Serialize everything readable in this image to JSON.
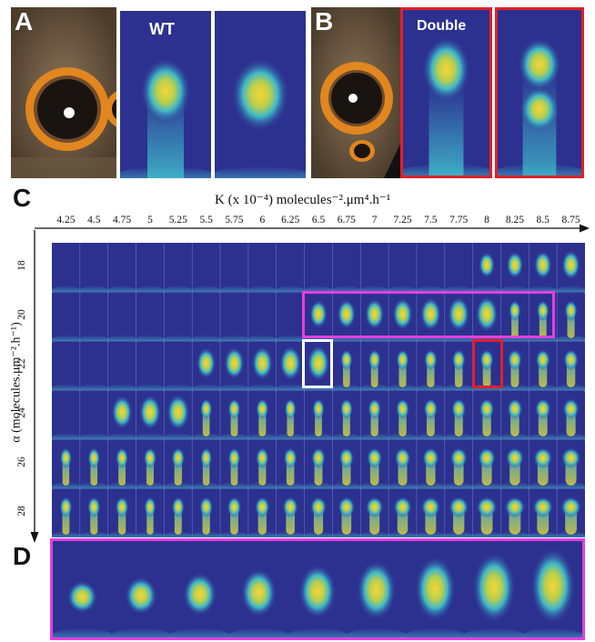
{
  "panels": {
    "A": {
      "letter": "A",
      "label": "WT"
    },
    "B": {
      "letter": "B",
      "label": "Double"
    },
    "C": {
      "letter": "C"
    },
    "D": {
      "letter": "D"
    }
  },
  "axes": {
    "k_label": "K (x 10⁻⁴) molecules⁻².μm⁴.h⁻¹",
    "alpha_label": "α (molecules.μm⁻².h⁻¹)",
    "k_ticks": [
      "4.25",
      "4.5",
      "4.75",
      "5",
      "5.25",
      "5.5",
      "5.75",
      "6",
      "6.25",
      "6.5",
      "6.75",
      "7",
      "7.25",
      "7.5",
      "7.75",
      "8",
      "8.25",
      "8.5",
      "8.75"
    ],
    "alpha_ticks": [
      "18",
      "20",
      "22",
      "24",
      "26",
      "28"
    ]
  },
  "colors": {
    "background": "#2c3190",
    "peak": "#f4d23a",
    "mid": "#3fb8c9",
    "highlight_magenta": "#e83ee0",
    "highlight_white": "#ffffff",
    "highlight_red": "#e0202a",
    "double_border": "#e0202a"
  }
}
